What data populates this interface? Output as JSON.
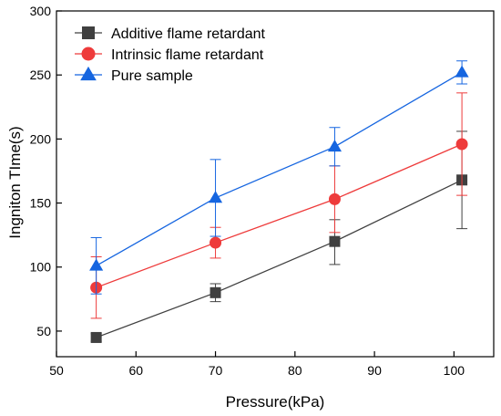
{
  "chart_data": {
    "type": "line",
    "title": "",
    "xlabel": "Pressure(kPa)",
    "ylabel": "Ingniton TIme(s)",
    "xlim": [
      50,
      105
    ],
    "ylim": [
      30,
      300
    ],
    "xticks": [
      50,
      60,
      70,
      80,
      90,
      100
    ],
    "yticks": [
      50,
      100,
      150,
      200,
      250,
      300
    ],
    "legend_position": "top-left",
    "grid": false,
    "x": [
      55,
      70,
      85,
      101
    ],
    "series": [
      {
        "name": "Additive flame retardant",
        "marker": "square",
        "color": "#404040",
        "values": [
          45,
          80,
          120,
          168
        ],
        "err_low": [
          3,
          7,
          18,
          38
        ],
        "err_high": [
          3,
          7,
          17,
          38
        ]
      },
      {
        "name": "Intrinsic flame retardant",
        "marker": "circle",
        "color": "#ee3b3b",
        "values": [
          84,
          119,
          153,
          196
        ],
        "err_low": [
          24,
          12,
          26,
          40
        ],
        "err_high": [
          24,
          12,
          26,
          40
        ]
      },
      {
        "name": "Pure sample",
        "marker": "triangle",
        "color": "#1565e0",
        "values": [
          101,
          154,
          194,
          252
        ],
        "err_low": [
          22,
          30,
          15,
          9
        ],
        "err_high": [
          22,
          30,
          15,
          9
        ]
      }
    ]
  }
}
